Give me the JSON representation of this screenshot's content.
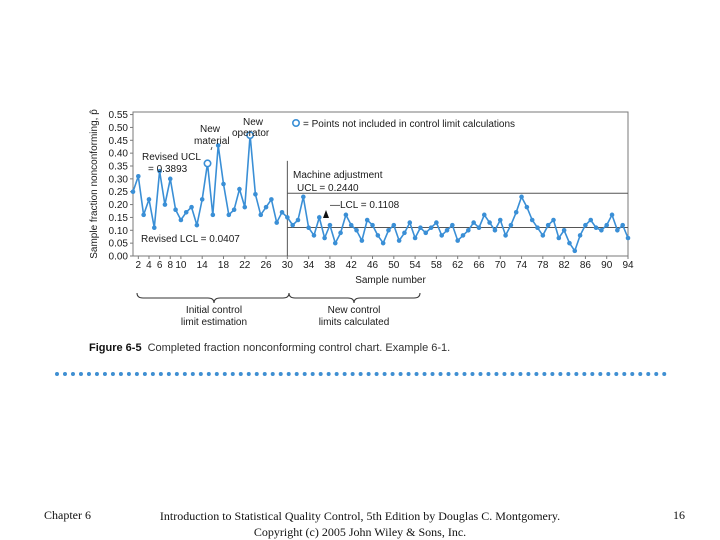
{
  "figure": {
    "caption_label": "Figure 6-5",
    "caption_text": "Completed fraction nonconforming control chart. Example 6-1."
  },
  "chart_data": {
    "type": "line",
    "ylabel": "Sample fraction nonconforming, p̂",
    "xlabel": "Sample number",
    "ylim": [
      0,
      0.56
    ],
    "yticks": [
      "0.00",
      "0.05",
      "0.10",
      "0.15",
      "0.20",
      "0.25",
      "0.30",
      "0.35",
      "0.40",
      "0.45",
      "0.50",
      "0.55"
    ],
    "xticks": [
      "2",
      "4",
      "6",
      "8",
      "10",
      "14",
      "18",
      "22",
      "26",
      "30",
      "34",
      "38",
      "42",
      "46",
      "50",
      "54",
      "58",
      "62",
      "66",
      "70",
      "74",
      "78",
      "82",
      "86",
      "90",
      "94"
    ],
    "legend": "= Points not included in control limit calculations",
    "annotations": {
      "new_material": "New material",
      "new_operator": "New operator",
      "revised_ucl": "Revised UCL = 0.3893",
      "revised_lcl": "Revised LCL = 0.0407",
      "machine_adjustment": "Machine adjustment",
      "ucl_new": "UCL = 0.2440",
      "lcl_new": "LCL = 0.1108",
      "initial_limits": "Initial control limits estimated",
      "new_limits": "New control limits calculated"
    },
    "limits": {
      "ucl_initial": 0.3893,
      "lcl_initial": 0.0407,
      "ucl_new": 0.244,
      "lcl_new": 0.1108,
      "center_new": 0.1108
    },
    "machine_adjustment_at": 30,
    "excluded_samples": [
      15,
      23
    ],
    "series": [
      {
        "values": [
          0.25,
          0.31,
          0.16,
          0.22,
          0.11,
          0.33,
          0.2,
          0.3,
          0.18,
          0.14,
          0.17,
          0.19,
          0.12,
          0.22,
          0.36,
          0.16,
          0.43,
          0.28,
          0.16,
          0.18,
          0.26,
          0.19,
          0.47,
          0.24,
          0.16,
          0.19,
          0.22,
          0.13,
          0.17,
          0.15,
          0.12,
          0.14,
          0.23,
          0.11,
          0.08,
          0.15,
          0.07,
          0.12,
          0.05,
          0.09,
          0.16,
          0.12,
          0.1,
          0.06,
          0.14,
          0.12,
          0.08,
          0.05,
          0.1,
          0.12,
          0.06,
          0.09,
          0.13,
          0.07,
          0.11,
          0.09,
          0.11,
          0.13,
          0.08,
          0.1,
          0.12,
          0.06,
          0.08,
          0.1,
          0.13,
          0.11,
          0.16,
          0.13,
          0.1,
          0.14,
          0.08,
          0.12,
          0.17,
          0.23,
          0.19,
          0.14,
          0.11,
          0.08,
          0.12,
          0.14,
          0.07,
          0.1,
          0.05,
          0.02,
          0.08,
          0.12,
          0.14,
          0.11,
          0.1,
          0.12,
          0.16,
          0.1,
          0.12,
          0.07
        ]
      }
    ]
  },
  "footer": {
    "left": "Chapter 6",
    "center_line1": "Introduction to Statistical Quality Control, 5th Edition by Douglas C. Montgomery.",
    "center_line2": "Copyright (c) 2005 John Wiley & Sons, Inc.",
    "right": "16"
  },
  "colors": {
    "series": "#3a8fd6",
    "frame": "#7a7a7a",
    "text": "#1a1a1a",
    "rule": "#3f8fd2"
  }
}
